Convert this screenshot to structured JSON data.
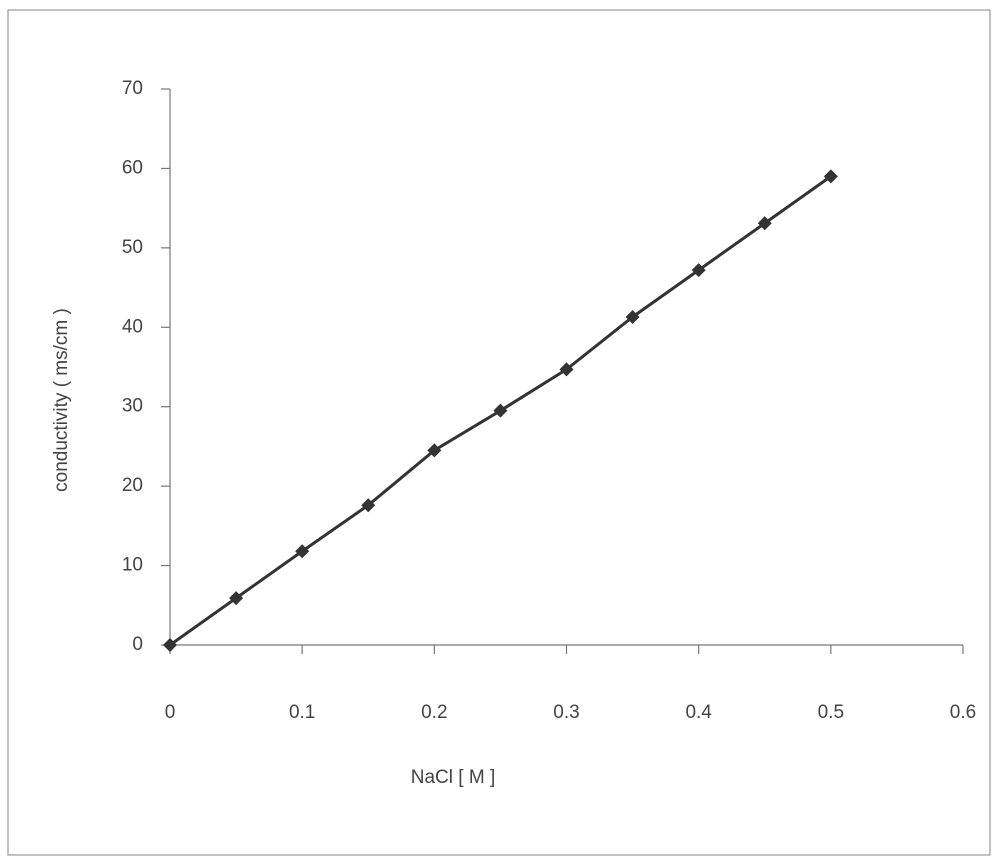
{
  "chart_data": {
    "type": "scatter-line",
    "x_label": "NaCl  [ M ]",
    "y_label": "conductivity  ( ms/cm )",
    "x": [
      0,
      0.05,
      0.1,
      0.15,
      0.2,
      0.25,
      0.3,
      0.35,
      0.4,
      0.45,
      0.5
    ],
    "values": [
      0,
      5.9,
      11.8,
      17.6,
      24.5,
      29.5,
      34.7,
      41.3,
      47.2,
      53.1,
      59.0
    ],
    "color": "#333333",
    "xlim": [
      0,
      0.6
    ],
    "xticks": [
      0,
      0.1,
      0.2,
      0.3,
      0.4,
      0.5,
      0.6
    ],
    "ylim": [
      0,
      70
    ],
    "yticks": [
      0,
      10,
      20,
      30,
      40,
      50,
      60,
      70
    ],
    "grid": false
  }
}
